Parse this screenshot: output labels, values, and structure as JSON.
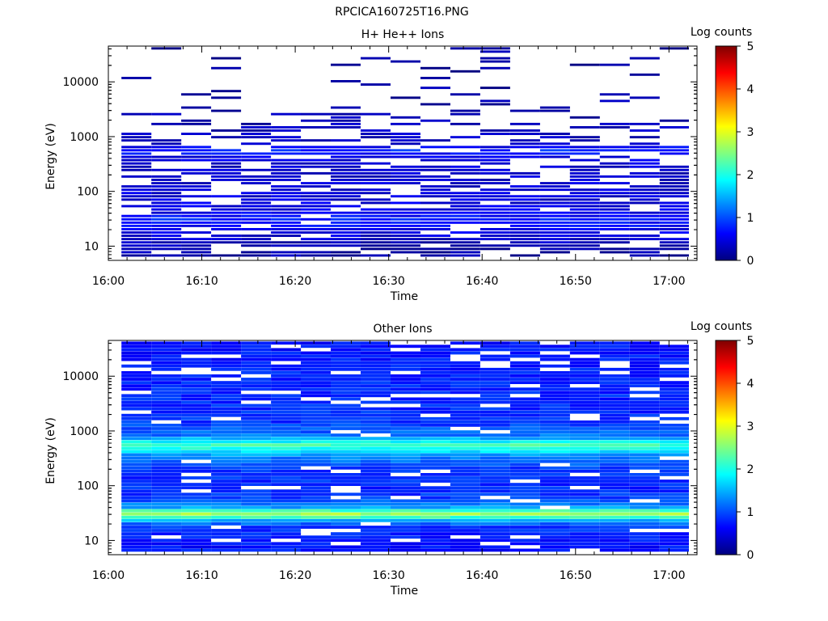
{
  "figure_title": "RPCICA160725T16.PNG",
  "chart_data": [
    {
      "type": "heatmap",
      "title": "H+ He++ Ions",
      "xlabel": "Time",
      "ylabel": "Energy (eV)",
      "x_ticks": [
        "16:00",
        "16:10",
        "16:20",
        "16:30",
        "16:40",
        "16:50",
        "17:00"
      ],
      "x_tick_minutes": [
        0,
        10,
        20,
        30,
        40,
        50,
        60
      ],
      "xlim_minutes": [
        0,
        63
      ],
      "y_scale": "log",
      "y_ticks": [
        "10",
        "100",
        "1000",
        "10000"
      ],
      "ylim": [
        5.5,
        45000
      ],
      "time_bins_minutes": [
        1.4,
        4.6,
        7.8,
        11.0,
        14.2,
        17.4,
        20.6,
        23.8,
        27.0,
        30.2,
        33.4,
        36.6,
        39.8,
        43.0,
        46.2,
        49.4,
        52.6,
        55.8,
        59.0,
        62.2
      ],
      "colorbar": {
        "label": "Log counts",
        "ticks": [
          "0",
          "1",
          "2",
          "3",
          "4",
          "5"
        ],
        "range": [
          0,
          5
        ],
        "scale": "jet"
      },
      "intensity_profile": {
        "description_levels": "log counts vs energy",
        "energy": [
          8,
          12,
          20,
          30,
          40,
          60,
          100,
          200,
          400,
          550,
          700,
          1000,
          2000,
          5000,
          10000,
          30000
        ],
        "log_counts": [
          0.2,
          0.3,
          0.55,
          0.75,
          0.55,
          0.45,
          0.4,
          0.35,
          0.45,
          0.8,
          0.4,
          0.3,
          0.25,
          0.2,
          0.15,
          0.15
        ],
        "fill_fraction": [
          0.75,
          0.75,
          0.85,
          0.95,
          0.9,
          0.8,
          0.7,
          0.7,
          0.75,
          0.85,
          0.6,
          0.4,
          0.2,
          0.12,
          0.08,
          0.06
        ]
      }
    },
    {
      "type": "heatmap",
      "title": "Other Ions",
      "xlabel": "Time",
      "ylabel": "Energy (eV)",
      "x_ticks": [
        "16:00",
        "16:10",
        "16:20",
        "16:30",
        "16:40",
        "16:50",
        "17:00"
      ],
      "x_tick_minutes": [
        0,
        10,
        20,
        30,
        40,
        50,
        60
      ],
      "xlim_minutes": [
        0,
        63
      ],
      "y_scale": "log",
      "y_ticks": [
        "10",
        "100",
        "1000",
        "10000"
      ],
      "ylim": [
        5.5,
        45000
      ],
      "time_bins_minutes": [
        1.4,
        4.6,
        7.8,
        11.0,
        14.2,
        17.4,
        20.6,
        23.8,
        27.0,
        30.2,
        33.4,
        36.6,
        39.8,
        43.0,
        46.2,
        49.4,
        52.6,
        55.8,
        59.0,
        62.2
      ],
      "colorbar": {
        "label": "Log counts",
        "ticks": [
          "0",
          "1",
          "2",
          "3",
          "4",
          "5"
        ],
        "range": [
          0,
          5
        ],
        "scale": "jet"
      },
      "intensity_profile": {
        "energy": [
          8,
          12,
          18,
          22,
          26,
          30,
          34,
          40,
          60,
          100,
          200,
          350,
          450,
          550,
          650,
          800,
          1500,
          5000,
          15000,
          35000
        ],
        "log_counts": [
          0.7,
          0.75,
          0.9,
          1.3,
          2.1,
          2.7,
          2.3,
          1.4,
          0.9,
          0.8,
          0.9,
          1.3,
          1.9,
          2.2,
          1.8,
          1.2,
          0.85,
          0.8,
          0.75,
          0.7
        ],
        "fill_fraction": [
          0.85,
          0.9,
          0.95,
          1,
          1,
          1,
          1,
          0.97,
          0.92,
          0.92,
          0.93,
          0.97,
          1,
          1,
          1,
          0.95,
          0.9,
          0.9,
          0.88,
          0.88
        ]
      }
    }
  ]
}
